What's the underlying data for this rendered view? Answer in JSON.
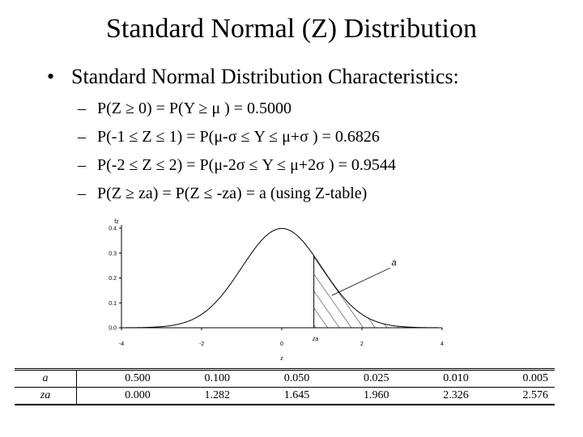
{
  "slide": {
    "title": "Standard Normal (Z) Distribution",
    "bullet": "Standard Normal Distribution Characteristics:",
    "bullet_marker": "•",
    "dash": "–",
    "items": [
      "P(Z ≥ 0) = P(Y ≥ μ ) = 0.5000",
      "P(-1 ≤ Z ≤ 1) = P(μ-σ ≤ Y ≤ μ+σ ) = 0.6826",
      "P(-2 ≤ Z ≤ 2) = P(μ-2σ ≤ Y ≤ μ+2σ ) = 0.9544",
      "P(Z ≥ za) = P(Z ≤ -za) = a (using Z-table)"
    ]
  },
  "chart_data": {
    "type": "area",
    "series": "standard normal density",
    "ylabel": "fz",
    "xlabel": "z",
    "x_ticks": [
      "-4",
      "-2",
      "0",
      "2",
      "4"
    ],
    "y_ticks": [
      "0.0",
      "0.1",
      "0.2",
      "0.3",
      "0.4"
    ],
    "xlim": [
      -4,
      4
    ],
    "ylim": [
      0,
      0.4
    ],
    "shaded_region_start": 0.8,
    "shaded_label": "a",
    "cut_label": "za",
    "shading_color": "#000000"
  },
  "table": {
    "rows": [
      {
        "label": "a",
        "values": [
          "0.500",
          "0.100",
          "0.050",
          "0.025",
          "0.010",
          "0.005"
        ]
      },
      {
        "label": "za",
        "values": [
          "0.000",
          "1.282",
          "1.645",
          "1.960",
          "2.326",
          "2.576"
        ]
      }
    ]
  }
}
